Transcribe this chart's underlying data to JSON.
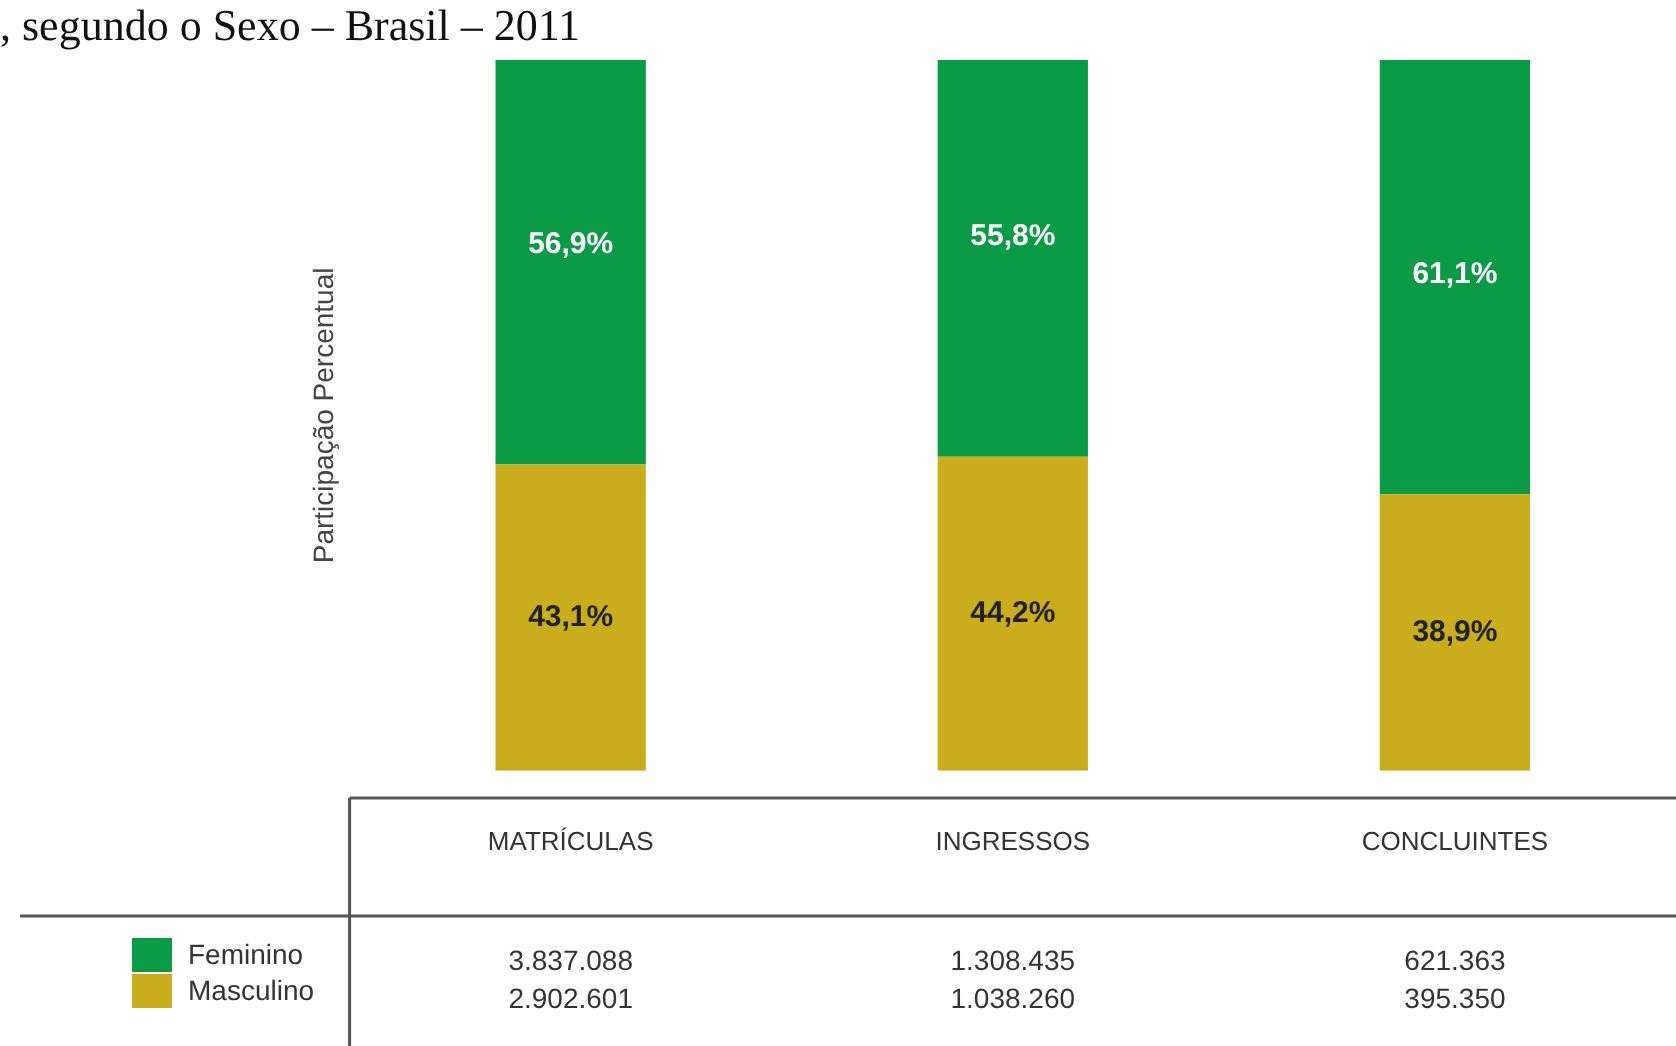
{
  "chart_data": {
    "type": "bar",
    "title": ", segundo o Sexo – Brasil – 2011",
    "ylabel": "Participação Percentual",
    "categories": [
      "MATRÍCULAS",
      "INGRESSOS",
      "CONCLUINTES"
    ],
    "stacked": true,
    "tick_labels": "x",
    "grid": false,
    "legend": "bottom left",
    "series": [
      {
        "name": "Masculino",
        "color": "#c9ad1c",
        "values": [
          43.1,
          44.2,
          38.9
        ],
        "value_labels": [
          "43,1%",
          "44,2%",
          "38,9%"
        ]
      },
      {
        "name": "Feminino",
        "color": "#0b9a45",
        "values": [
          56.9,
          55.8,
          61.1
        ],
        "value_labels": [
          "56,9%",
          "55,8%",
          "61,1%"
        ]
      }
    ],
    "annotations": [
      "3.837.088",
      "2.902.601",
      "1.308.435",
      "1.038.260",
      "621.363",
      "395.350"
    ]
  }
}
